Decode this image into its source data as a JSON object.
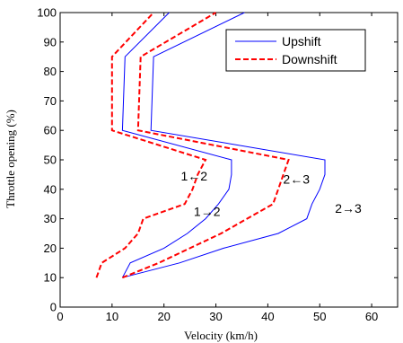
{
  "chart_data": {
    "type": "line",
    "title": "",
    "xlabel": "Velocity (km/h)",
    "ylabel": "Throttle opening (%)",
    "xlim": [
      0,
      65
    ],
    "ylim": [
      0,
      100
    ],
    "xticks": [
      0,
      10,
      20,
      30,
      40,
      50,
      60
    ],
    "yticks": [
      0,
      10,
      20,
      30,
      40,
      50,
      60,
      70,
      80,
      90,
      100
    ],
    "grid": false,
    "legend_position": "top-right",
    "legend": [
      {
        "name": "Upshift",
        "color": "#0000ff",
        "style": "solid"
      },
      {
        "name": "Downshift",
        "color": "#ff0000",
        "style": "dashed"
      }
    ],
    "series": [
      {
        "name": "Upshift",
        "label": "1→2",
        "color": "#0000ff",
        "style": "solid",
        "points": [
          [
            12,
            10
          ],
          [
            13.5,
            15
          ],
          [
            20,
            20
          ],
          [
            24.5,
            25
          ],
          [
            28,
            30
          ],
          [
            30.5,
            35
          ],
          [
            32.5,
            40
          ],
          [
            33,
            45
          ],
          [
            33,
            50
          ],
          [
            12,
            60
          ],
          [
            12.5,
            85
          ],
          [
            21,
            100
          ]
        ]
      },
      {
        "name": "Upshift",
        "label": "2→3",
        "color": "#0000ff",
        "style": "solid",
        "points": [
          [
            12,
            10
          ],
          [
            23,
            15
          ],
          [
            31.5,
            20
          ],
          [
            42,
            25
          ],
          [
            47.5,
            30
          ],
          [
            48.5,
            35
          ],
          [
            50,
            40
          ],
          [
            51,
            45
          ],
          [
            51,
            50
          ],
          [
            17.5,
            60
          ],
          [
            18,
            85
          ],
          [
            35.5,
            100
          ]
        ]
      },
      {
        "name": "Downshift",
        "label": "1←2",
        "color": "#ff0000",
        "style": "dashed",
        "points": [
          [
            7,
            10
          ],
          [
            8,
            15
          ],
          [
            12.5,
            20
          ],
          [
            15,
            25
          ],
          [
            16,
            30
          ],
          [
            24,
            35
          ],
          [
            25.5,
            40
          ],
          [
            26.5,
            45
          ],
          [
            28,
            50
          ],
          [
            10,
            60
          ],
          [
            10,
            85
          ],
          [
            18,
            100
          ]
        ]
      },
      {
        "name": "Downshift",
        "label": "2←3",
        "color": "#ff0000",
        "style": "dashed",
        "points": [
          [
            12,
            10
          ],
          [
            19,
            15
          ],
          [
            25,
            20
          ],
          [
            31,
            25
          ],
          [
            36,
            30
          ],
          [
            41,
            35
          ],
          [
            42,
            40
          ],
          [
            43,
            45
          ],
          [
            44,
            50
          ],
          [
            15,
            60
          ],
          [
            15.5,
            85
          ],
          [
            30,
            100
          ]
        ]
      }
    ],
    "annotations": [
      {
        "text": "1←2",
        "x": 25.8,
        "y": 44.5
      },
      {
        "text": "1→2",
        "x": 28.3,
        "y": 32.5
      },
      {
        "text": "2←3",
        "x": 45.5,
        "y": 43.5
      },
      {
        "text": "2→3",
        "x": 55.5,
        "y": 33.5
      }
    ]
  }
}
